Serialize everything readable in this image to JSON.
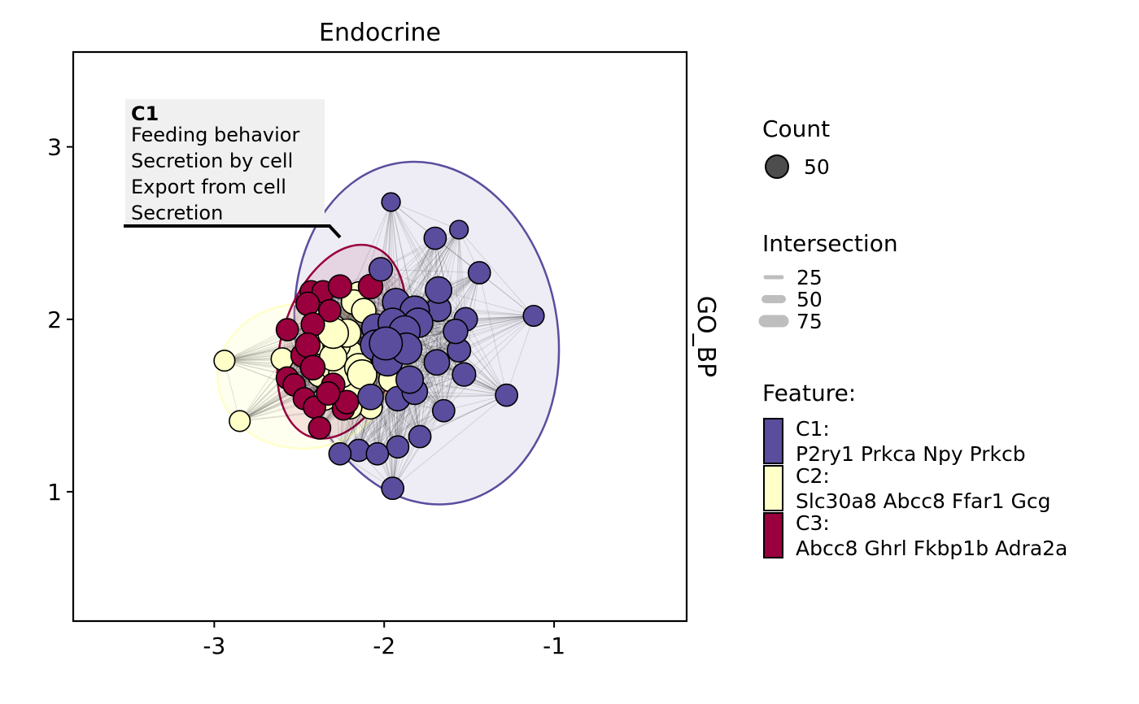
{
  "chart_data": {
    "type": "scatter",
    "title": "Endocrine",
    "strip_label": "GO_BP",
    "xlabel": "",
    "ylabel": "",
    "xlim": [
      -3.83,
      -0.22
    ],
    "ylim": [
      0.25,
      3.55
    ],
    "x_ticks": [
      -3,
      -2,
      -1
    ],
    "x_tick_labels": [
      "-3",
      "-2",
      "-1"
    ],
    "y_ticks": [
      1,
      2,
      3
    ],
    "y_tick_labels": [
      "1",
      "2",
      "3"
    ],
    "grid": false,
    "legend_position": "right",
    "colors": {
      "C1": "#5b4d9e",
      "C2": "#ffffc8",
      "C3": "#99003d"
    },
    "legend": {
      "count": {
        "title": "Count",
        "labels": [
          "50"
        ]
      },
      "intersection": {
        "title": "Intersection",
        "labels": [
          "25",
          "50",
          "75"
        ]
      },
      "feature": {
        "title": "Feature:",
        "items": [
          {
            "key": "C1",
            "label": "C1:",
            "genes": "P2ry1 Prkca Npy Prkcb"
          },
          {
            "key": "C2",
            "label": "C2:",
            "genes": "Slc30a8 Abcc8 Ffar1 Gcg"
          },
          {
            "key": "C3",
            "label": "C3:",
            "genes": "Abcc8 Ghrl Fkbp1b Adra2a"
          }
        ]
      }
    },
    "annotation": {
      "title": "C1",
      "lines": [
        "Feeding behavior",
        "Secretion by cell",
        "Export from cell",
        "Secretion"
      ]
    },
    "ellipses": [
      {
        "cluster": "C1",
        "cx": -1.75,
        "cy": 1.92,
        "rx": 0.77,
        "ry": 1.0,
        "angle": -10
      },
      {
        "cluster": "C2",
        "cx": -2.48,
        "cy": 1.67,
        "rx": 0.5,
        "ry": 0.42,
        "angle": 0
      },
      {
        "cluster": "C3",
        "cx": -2.25,
        "cy": 1.87,
        "rx": 0.35,
        "ry": 0.58,
        "angle": 18
      }
    ],
    "series": [
      {
        "name": "C1",
        "points": [
          {
            "x": -1.96,
            "y": 2.68,
            "s": 5
          },
          {
            "x": -1.56,
            "y": 2.52,
            "s": 5
          },
          {
            "x": -1.7,
            "y": 2.47,
            "s": 10
          },
          {
            "x": -1.44,
            "y": 2.27,
            "s": 10
          },
          {
            "x": -2.02,
            "y": 2.29,
            "s": 12
          },
          {
            "x": -1.12,
            "y": 2.02,
            "s": 8
          },
          {
            "x": -1.68,
            "y": 2.17,
            "s": 18
          },
          {
            "x": -1.68,
            "y": 2.06,
            "s": 15
          },
          {
            "x": -1.93,
            "y": 2.1,
            "s": 20
          },
          {
            "x": -1.82,
            "y": 2.05,
            "s": 25
          },
          {
            "x": -1.95,
            "y": 1.98,
            "s": 25
          },
          {
            "x": -1.8,
            "y": 1.98,
            "s": 25
          },
          {
            "x": -1.88,
            "y": 1.93,
            "s": 30
          },
          {
            "x": -2.05,
            "y": 1.95,
            "s": 22
          },
          {
            "x": -1.87,
            "y": 1.83,
            "s": 30
          },
          {
            "x": -1.99,
            "y": 1.86,
            "s": 35
          },
          {
            "x": -2.05,
            "y": 1.85,
            "s": 28
          },
          {
            "x": -1.98,
            "y": 1.76,
            "s": 28
          },
          {
            "x": -2.0,
            "y": 1.9,
            "s": 20
          },
          {
            "x": -1.52,
            "y": 2.0,
            "s": 12
          },
          {
            "x": -1.58,
            "y": 1.93,
            "s": 14
          },
          {
            "x": -1.56,
            "y": 1.82,
            "s": 12
          },
          {
            "x": -1.69,
            "y": 1.75,
            "s": 16
          },
          {
            "x": -1.53,
            "y": 1.68,
            "s": 12
          },
          {
            "x": -1.28,
            "y": 1.56,
            "s": 10
          },
          {
            "x": -1.85,
            "y": 1.65,
            "s": 20
          },
          {
            "x": -1.82,
            "y": 1.58,
            "s": 16
          },
          {
            "x": -1.92,
            "y": 1.54,
            "s": 14
          },
          {
            "x": -2.08,
            "y": 1.55,
            "s": 16
          },
          {
            "x": -1.65,
            "y": 1.47,
            "s": 10
          },
          {
            "x": -1.79,
            "y": 1.32,
            "s": 10
          },
          {
            "x": -1.92,
            "y": 1.26,
            "s": 10
          },
          {
            "x": -2.15,
            "y": 1.24,
            "s": 10
          },
          {
            "x": -2.04,
            "y": 1.22,
            "s": 10
          },
          {
            "x": -2.26,
            "y": 1.22,
            "s": 10
          },
          {
            "x": -1.95,
            "y": 1.02,
            "s": 10
          }
        ]
      },
      {
        "name": "C2",
        "points": [
          {
            "x": -2.94,
            "y": 1.76,
            "s": 8
          },
          {
            "x": -2.85,
            "y": 1.41,
            "s": 8
          },
          {
            "x": -2.6,
            "y": 1.77,
            "s": 10
          },
          {
            "x": -2.15,
            "y": 2.15,
            "s": 12
          },
          {
            "x": -2.18,
            "y": 2.1,
            "s": 14
          },
          {
            "x": -2.12,
            "y": 2.05,
            "s": 14
          },
          {
            "x": -2.35,
            "y": 2.0,
            "s": 14
          },
          {
            "x": -2.3,
            "y": 1.95,
            "s": 18
          },
          {
            "x": -2.22,
            "y": 1.92,
            "s": 22
          },
          {
            "x": -2.28,
            "y": 1.85,
            "s": 20
          },
          {
            "x": -2.38,
            "y": 1.87,
            "s": 16
          },
          {
            "x": -2.3,
            "y": 1.78,
            "s": 20
          },
          {
            "x": -2.2,
            "y": 1.8,
            "s": 18
          },
          {
            "x": -2.3,
            "y": 1.72,
            "s": 16
          },
          {
            "x": -2.25,
            "y": 1.68,
            "s": 18
          },
          {
            "x": -2.15,
            "y": 1.72,
            "s": 22
          },
          {
            "x": -2.13,
            "y": 1.68,
            "s": 25
          },
          {
            "x": -2.38,
            "y": 1.68,
            "s": 14
          },
          {
            "x": -2.33,
            "y": 1.62,
            "s": 12
          },
          {
            "x": -2.2,
            "y": 1.6,
            "s": 14
          },
          {
            "x": -1.96,
            "y": 1.65,
            "s": 14
          },
          {
            "x": -2.08,
            "y": 1.49,
            "s": 12
          },
          {
            "x": -2.2,
            "y": 1.49,
            "s": 12
          },
          {
            "x": -2.35,
            "y": 1.54,
            "s": 12
          },
          {
            "x": -2.3,
            "y": 1.92,
            "s": 28
          },
          {
            "x": -2.4,
            "y": 1.95,
            "s": 12
          }
        ]
      },
      {
        "name": "C3",
        "points": [
          {
            "x": -2.43,
            "y": 2.16,
            "s": 10
          },
          {
            "x": -2.36,
            "y": 2.16,
            "s": 10
          },
          {
            "x": -2.26,
            "y": 2.19,
            "s": 12
          },
          {
            "x": -2.08,
            "y": 2.19,
            "s": 14
          },
          {
            "x": -2.45,
            "y": 2.09,
            "s": 12
          },
          {
            "x": -2.42,
            "y": 1.97,
            "s": 12
          },
          {
            "x": -2.57,
            "y": 1.94,
            "s": 10
          },
          {
            "x": -2.45,
            "y": 1.85,
            "s": 14
          },
          {
            "x": -2.48,
            "y": 1.79,
            "s": 12
          },
          {
            "x": -2.42,
            "y": 1.72,
            "s": 14
          },
          {
            "x": -2.57,
            "y": 1.66,
            "s": 10
          },
          {
            "x": -2.53,
            "y": 1.62,
            "s": 10
          },
          {
            "x": -2.3,
            "y": 1.62,
            "s": 12
          },
          {
            "x": -2.22,
            "y": 1.52,
            "s": 12
          },
          {
            "x": -2.47,
            "y": 1.54,
            "s": 10
          },
          {
            "x": -2.41,
            "y": 1.49,
            "s": 10
          },
          {
            "x": -2.33,
            "y": 1.57,
            "s": 12
          },
          {
            "x": -2.38,
            "y": 1.37,
            "s": 10
          },
          {
            "x": -2.32,
            "y": 2.05,
            "s": 10
          },
          {
            "x": -2.24,
            "y": 1.48,
            "s": 10
          }
        ]
      }
    ]
  }
}
